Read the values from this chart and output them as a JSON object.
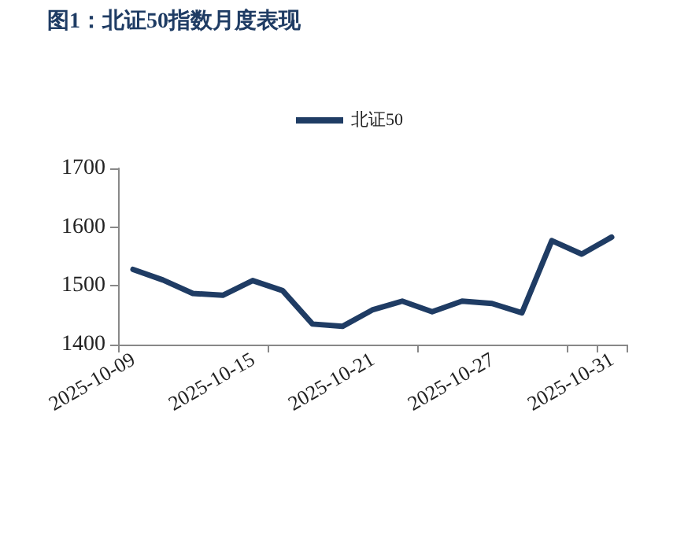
{
  "chart_data": {
    "type": "line",
    "title": "图1：北证50指数月度表现",
    "categories": [
      "2025-10-09",
      null,
      null,
      null,
      "2025-10-15",
      null,
      null,
      null,
      "2025-10-21",
      null,
      null,
      null,
      "2025-10-27",
      null,
      null,
      null,
      "2025-10-31"
    ],
    "series": [
      {
        "name": "北证50",
        "color": "#1f3c64",
        "values": [
          1528,
          1510,
          1487,
          1484,
          1509,
          1492,
          1435,
          1431,
          1459,
          1474,
          1456,
          1474,
          1470,
          1454,
          1577,
          1554,
          1583
        ]
      }
    ],
    "ylim": [
      1400,
      1700
    ],
    "yticks": [
      1400,
      1500,
      1600,
      1700
    ],
    "grid": false,
    "legend": "top",
    "marker": "none",
    "line_style": "solid"
  }
}
